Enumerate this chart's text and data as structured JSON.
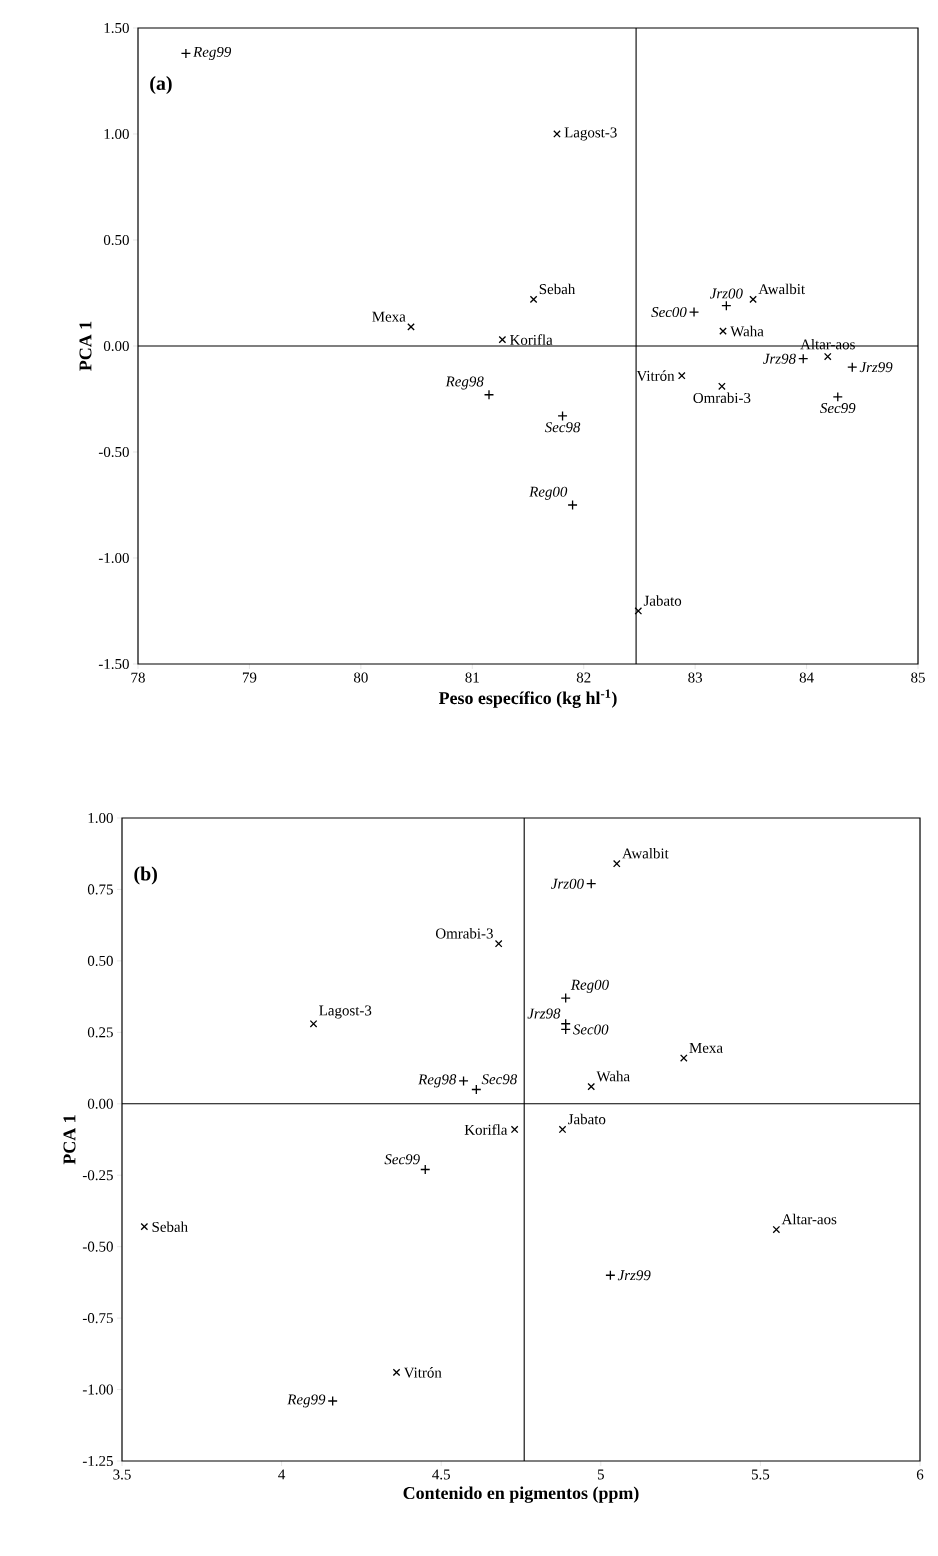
{
  "chart_data": [
    {
      "type": "scatter",
      "xlabel": "Peso específico (kg hl$^{-1}$)",
      "ylabel": "PCA 1",
      "annotations": [
        "(a)"
      ],
      "xlim": [
        78,
        85
      ],
      "ylim": [
        -1.5,
        1.5
      ],
      "xticks": [
        78,
        79,
        80,
        81,
        82,
        83,
        84,
        85
      ],
      "yticks": [
        {
          "value": -1.5,
          "label": "-1.50"
        },
        {
          "value": -1.0,
          "label": "-1.00"
        },
        {
          "value": -0.5,
          "label": "-0.50"
        },
        {
          "value": 0,
          "label": "0.00"
        },
        {
          "value": 0.5,
          "label": "0.50"
        },
        {
          "value": 1.0,
          "label": "1.00"
        },
        {
          "value": 1.5,
          "label": "1.50"
        }
      ],
      "ref_lines": [
        {
          "axis": "x",
          "value": 82.47
        },
        {
          "axis": "y",
          "value": 0
        }
      ],
      "series": [
        {
          "marker": "plus",
          "color": "#000000",
          "x": [
            78.43,
            81.15,
            81.81,
            81.9,
            82.99,
            83.28,
            83.97,
            84.41,
            84.28
          ],
          "values": [
            1.38,
            -0.23,
            -0.33,
            -0.75,
            0.16,
            0.19,
            -0.06,
            -0.1,
            -0.24
          ],
          "value_labels": [
            "Reg99",
            "Reg98",
            "Sec98",
            "Reg00",
            "Sec00",
            "Jrz00",
            "Jrz98",
            "Jrz99",
            "Sec99"
          ]
        },
        {
          "marker": "cross",
          "color": "#000000",
          "x": [
            81.76,
            81.55,
            80.45,
            81.27,
            82.49,
            83.52,
            83.25,
            84.19,
            82.88,
            83.24
          ],
          "values": [
            1.0,
            0.22,
            0.09,
            0.03,
            -1.25,
            0.22,
            0.07,
            -0.05,
            -0.14,
            -0.19
          ],
          "value_labels": [
            "Lagost-3",
            "Sebah",
            "Mexa",
            "Korifla",
            "Jabato",
            "Awalbit",
            "Waha",
            "Altar-aos",
            "Vitrón",
            "Omrabi-3"
          ]
        }
      ]
    },
    {
      "type": "scatter",
      "xlabel": "Contenido en pigmentos (ppm)",
      "ylabel": "PCA 1",
      "annotations": [
        "(b)"
      ],
      "xlim": [
        3.5,
        6
      ],
      "ylim": [
        -1.25,
        1.0
      ],
      "xticks": [
        3.5,
        4,
        4.5,
        5,
        5.5,
        6
      ],
      "yticks": [
        {
          "value": -1.25,
          "label": "-1.25"
        },
        {
          "value": -1.0,
          "label": "-1.00"
        },
        {
          "value": -0.75,
          "label": "-0.75"
        },
        {
          "value": -0.5,
          "label": "-0.50"
        },
        {
          "value": -0.25,
          "label": "-0.25"
        },
        {
          "value": 0,
          "label": "0.00"
        },
        {
          "value": 0.25,
          "label": "0.25"
        },
        {
          "value": 0.5,
          "label": "0.50"
        },
        {
          "value": 0.75,
          "label": "0.75"
        },
        {
          "value": 1.0,
          "label": "1.00"
        }
      ],
      "ref_lines": [
        {
          "axis": "x",
          "value": 4.76
        },
        {
          "axis": "y",
          "value": 0
        }
      ],
      "series": [
        {
          "marker": "plus",
          "color": "#000000",
          "x": [
            4.16,
            4.57,
            4.61,
            4.45,
            4.97,
            4.89,
            4.89,
            4.89,
            5.03
          ],
          "values": [
            -1.04,
            0.08,
            0.05,
            -0.23,
            0.77,
            0.37,
            0.28,
            0.26,
            -0.6
          ],
          "value_labels": [
            "Reg99",
            "Reg98",
            "Sec98",
            "Sec99",
            "Jrz00",
            "Reg00",
            "Jrz98",
            "Sec00",
            "Jrz99"
          ]
        },
        {
          "marker": "cross",
          "color": "#000000",
          "x": [
            4.1,
            4.68,
            5.05,
            5.26,
            4.97,
            4.73,
            4.88,
            3.57,
            5.55,
            4.36
          ],
          "values": [
            0.28,
            0.56,
            0.84,
            0.16,
            0.06,
            -0.09,
            -0.09,
            -0.43,
            -0.44,
            -0.94
          ],
          "value_labels": [
            "Lagost-3",
            "Omrabi-3",
            "Awalbit",
            "Mexa",
            "Waha",
            "Korifla",
            "Jabato",
            "Sebah",
            "Altar-aos",
            "Vitrón"
          ]
        }
      ]
    }
  ]
}
